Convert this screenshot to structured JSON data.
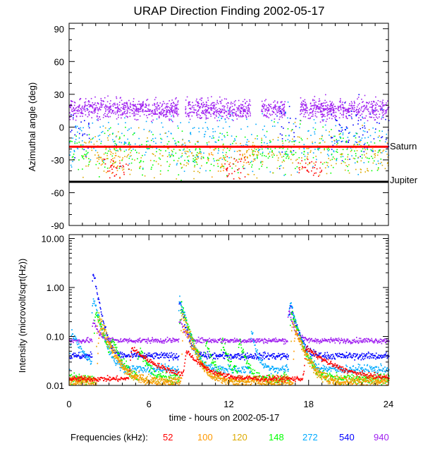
{
  "chart_data": [
    {
      "type": "scatter",
      "title": "URAP Direction Finding  2002-05-17",
      "ylabel": "Azimuthal angle (deg)",
      "xlim": [
        0,
        24
      ],
      "ylim": [
        -90,
        95
      ],
      "yticks": [
        90,
        60,
        30,
        0,
        -30,
        -60,
        -90
      ],
      "reference_lines": [
        {
          "name": "Saturn",
          "value": -18,
          "color": "#ff0000"
        },
        {
          "name": "Jupiter",
          "value": -50,
          "color": "#000000"
        }
      ],
      "series": [
        {
          "name": "940",
          "color": "#a020f0",
          "center": 17,
          "spread": 9,
          "x_ranges": [
            [
              0,
              8.2
            ],
            [
              8.7,
              13.6
            ],
            [
              14.4,
              16.2
            ],
            [
              17.3,
              24
            ]
          ]
        },
        {
          "name": "540",
          "color": "#0000ff",
          "center": -5,
          "spread": 25,
          "x_ranges": [
            [
              0,
              1.5
            ],
            [
              15.5,
              17
            ],
            [
              19.5,
              24
            ]
          ]
        },
        {
          "name": "272",
          "color": "#00aaff",
          "center": -12,
          "spread": 25,
          "x_ranges": [
            [
              0,
              24
            ]
          ]
        },
        {
          "name": "148",
          "color": "#00ff00",
          "center": -22,
          "spread": 20,
          "x_ranges": [
            [
              0,
              24
            ]
          ]
        },
        {
          "name": "120",
          "color": "#ddaa00",
          "center": -25,
          "spread": 20,
          "x_ranges": [
            [
              1,
              10
            ],
            [
              13,
              24
            ]
          ]
        },
        {
          "name": "100",
          "color": "#ff9900",
          "center": -28,
          "spread": 15,
          "x_ranges": [
            [
              2,
              4
            ],
            [
              10,
              14
            ]
          ]
        },
        {
          "name": "52",
          "color": "#ff0000",
          "center": -36,
          "spread": 10,
          "x_ranges": [
            [
              2.5,
              4.5
            ],
            [
              11.5,
              13.5
            ],
            [
              17,
              19
            ]
          ]
        }
      ]
    },
    {
      "type": "line",
      "ylabel": "Intensity (microvolt/sqrt(Hz))",
      "xlabel": "time - hours on 2002-05-17",
      "xlim": [
        0,
        24
      ],
      "xticks": [
        0,
        6,
        12,
        18,
        24
      ],
      "yscale": "log",
      "ylim": [
        0.01,
        12
      ],
      "yticks": [
        0.01,
        0.1,
        1.0,
        10.0
      ],
      "ytick_labels": [
        "0.01",
        "0.10",
        "1.00",
        "10.00"
      ],
      "series": [
        {
          "name": "940",
          "color": "#a020f0",
          "base": 0.085,
          "noise": 0.06,
          "bursts": [
            [
              1.8,
              0.12,
              0.35
            ],
            [
              8.3,
              0.15,
              0.3
            ],
            [
              16.5,
              0.25,
              0.3
            ]
          ]
        },
        {
          "name": "540",
          "color": "#0000ff",
          "base": 0.041,
          "noise": 0.08,
          "bursts": [
            [
              1.8,
              2.0,
              0.3
            ],
            [
              8.3,
              0.5,
              0.3
            ],
            [
              16.6,
              0.4,
              0.4
            ]
          ]
        },
        {
          "name": "272",
          "color": "#00aaff",
          "base": 0.022,
          "noise": 0.1,
          "bursts": [
            [
              0.2,
              0.1,
              0.6
            ],
            [
              1.8,
              0.6,
              0.4
            ],
            [
              8.3,
              0.6,
              0.4
            ],
            [
              13.7,
              0.1,
              0.3
            ],
            [
              16.6,
              0.5,
              0.4
            ]
          ]
        },
        {
          "name": "148",
          "color": "#00ff00",
          "base": 0.014,
          "noise": 0.12,
          "bursts": [
            [
              2.0,
              0.3,
              0.5
            ],
            [
              3.2,
              0.05,
              0.5
            ],
            [
              5.3,
              0.04,
              0.5
            ],
            [
              8.4,
              0.4,
              0.5
            ],
            [
              10.3,
              0.05,
              0.4
            ],
            [
              11.5,
              0.06,
              0.4
            ],
            [
              12.8,
              0.06,
              0.4
            ],
            [
              16.7,
              0.3,
              0.5
            ]
          ]
        },
        {
          "name": "120",
          "color": "#ddaa00",
          "base": 0.013,
          "noise": 0.12,
          "bursts": [
            [
              2.2,
              0.25,
              0.6
            ],
            [
              8.5,
              0.3,
              0.5
            ],
            [
              16.8,
              0.2,
              0.5
            ]
          ]
        },
        {
          "name": "100",
          "color": "#ff9900",
          "base": 0.012,
          "noise": 0.12,
          "bursts": [
            [
              2.3,
              0.15,
              0.7
            ],
            [
              8.6,
              0.15,
              0.6
            ],
            [
              17.0,
              0.12,
              0.6
            ]
          ]
        },
        {
          "name": "52",
          "color": "#ff0000",
          "base": 0.014,
          "noise": 0.06,
          "bursts": [
            [
              4.7,
              0.045,
              1.5
            ],
            [
              8.8,
              0.035,
              1.0
            ],
            [
              17.8,
              0.045,
              1.6
            ]
          ]
        }
      ]
    }
  ],
  "xtick_labels": [
    "0",
    "6",
    "12",
    "18",
    "24"
  ],
  "legend": {
    "label": "Frequencies (kHz):",
    "items": [
      {
        "text": "52",
        "color": "#ff0000"
      },
      {
        "text": "100",
        "color": "#ff9900"
      },
      {
        "text": "120",
        "color": "#ddaa00"
      },
      {
        "text": "148",
        "color": "#00ff00"
      },
      {
        "text": "272",
        "color": "#00aaff"
      },
      {
        "text": "540",
        "color": "#0000ff"
      },
      {
        "text": "940",
        "color": "#a020f0"
      }
    ]
  }
}
